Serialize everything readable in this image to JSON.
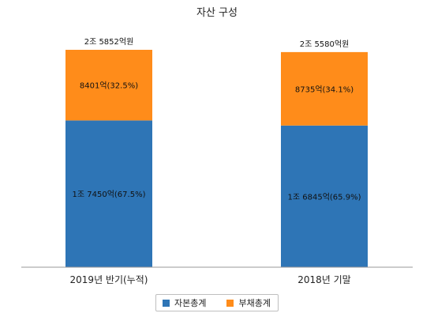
{
  "chart_data": {
    "type": "bar",
    "stacked": true,
    "title": "자산 구성",
    "unit": "억원",
    "categories": [
      "2019년 반기(누적)",
      "2018년 기말"
    ],
    "series": [
      {
        "name": "자본총계",
        "color": "#2e75b6",
        "values": [
          17450,
          16845
        ],
        "labels": [
          "1조 7450억(67.5%)",
          "1조 6845억(65.9%)"
        ]
      },
      {
        "name": "부채총계",
        "color": "#ff8c1a",
        "values": [
          8401,
          8735
        ],
        "labels": [
          "8401억(32.5%)",
          "8735억(34.1%)"
        ]
      }
    ],
    "totals": [
      25852,
      25580
    ],
    "total_labels": [
      "2조 5852억원",
      "2조 5580억원"
    ],
    "ylim": [
      0,
      26000
    ],
    "grid": false,
    "legend_position": "bottom-center"
  }
}
